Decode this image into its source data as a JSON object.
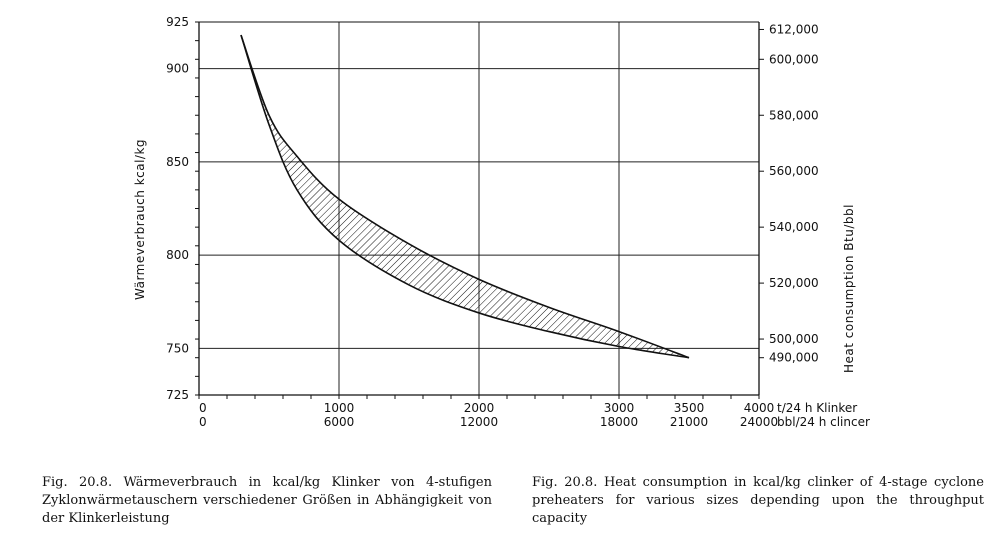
{
  "chart_data": {
    "type": "area",
    "y_left_label": "Wärmeverbrauch  kcal/kg",
    "y_right_label": "Heat  consumption  Btu/bbl",
    "x_unit_label_1": "t/24 h  Klinker",
    "x_unit_label_2": "bbl/24 h  clincer",
    "y_left_ticks": [
      725,
      750,
      800,
      850,
      900,
      925
    ],
    "y_left_range": [
      725,
      925
    ],
    "y_right_ticks": [
      {
        "label": "490,000",
        "kcal": 745
      },
      {
        "label": "500,000",
        "kcal": 755
      },
      {
        "label": "520,000",
        "kcal": 785
      },
      {
        "label": "540,000",
        "kcal": 815
      },
      {
        "label": "560,000",
        "kcal": 845
      },
      {
        "label": "580,000",
        "kcal": 875
      },
      {
        "label": "600,000",
        "kcal": 905
      },
      {
        "label": "612,000",
        "kcal": 921
      }
    ],
    "x_range": [
      0,
      4000
    ],
    "x_ticks": [
      {
        "value": 0,
        "label1": "0",
        "label2": "0"
      },
      {
        "value": 1000,
        "label1": "1000",
        "label2": "6000"
      },
      {
        "value": 2000,
        "label1": "2000",
        "label2": "12000"
      },
      {
        "value": 3000,
        "label1": "3000",
        "label2": "18000"
      },
      {
        "value": 3500,
        "label1": "3500",
        "label2": "21000"
      },
      {
        "value": 4000,
        "label1": "4000",
        "label2": "24000"
      }
    ],
    "grid": true,
    "band": {
      "upper": [
        [
          300,
          918
        ],
        [
          500,
          875
        ],
        [
          700,
          853
        ],
        [
          1000,
          830
        ],
        [
          1500,
          806
        ],
        [
          2000,
          787
        ],
        [
          2500,
          772
        ],
        [
          3000,
          759
        ],
        [
          3500,
          745
        ]
      ],
      "lower": [
        [
          300,
          918
        ],
        [
          500,
          870
        ],
        [
          700,
          835
        ],
        [
          1000,
          808
        ],
        [
          1500,
          784
        ],
        [
          2000,
          769
        ],
        [
          2500,
          759
        ],
        [
          3000,
          751
        ],
        [
          3500,
          745
        ]
      ]
    }
  },
  "captions": {
    "german": "Fig. 20.8.  Wärmeverbrauch in kcal/kg Klinker von 4-stufigen Zyklonwärmetauschern verschiedener Größen in Abhängigkeit von der Klinkerleistung",
    "english": "Fig. 20.8.  Heat consumption in kcal/kg clinker of 4-stage cyclone preheaters for various sizes depending upon the throughput capacity"
  }
}
